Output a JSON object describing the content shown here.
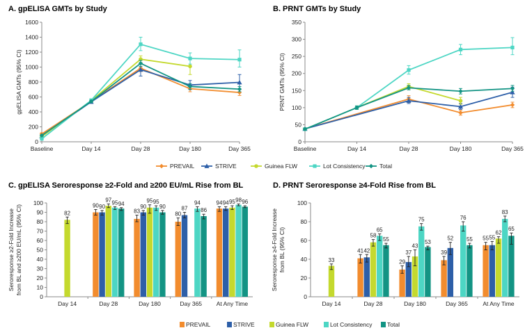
{
  "colors": {
    "PREVAIL": "#F28C2E",
    "STRIVE": "#2D5FA8",
    "Guinea FLW": "#C4D92E",
    "Lot Consistency": "#4DD6C4",
    "Total": "#139484"
  },
  "chart_data": [
    {
      "panel": "A",
      "type": "line",
      "title": "A. gpELISA GMTs by Study",
      "ylabel": "gpELISA GMTs (95% CI)",
      "categories": [
        "Baseline",
        "Day 14",
        "Day 28",
        "Day 180",
        "Day 365"
      ],
      "ylim": [
        0,
        1600
      ],
      "yticks": [
        "0",
        "200",
        "400",
        "600",
        "800",
        "1000",
        "1200",
        "1400",
        "1600"
      ],
      "series": [
        {
          "name": "PREVAIL",
          "values": [
            105,
            540,
            985,
            710,
            660
          ],
          "ci": [
            [
              90,
              120
            ],
            [
              520,
              560
            ],
            [
              940,
              1040
            ],
            [
              670,
              760
            ],
            [
              620,
              700
            ]
          ]
        },
        {
          "name": "STRIVE",
          "values": [
            75,
            535,
            965,
            760,
            795
          ],
          "ci": [
            [
              65,
              85
            ],
            [
              515,
              555
            ],
            [
              880,
              1050
            ],
            [
              700,
              820
            ],
            [
              700,
              900
            ]
          ]
        },
        {
          "name": "Guinea FLW",
          "values": [
            70,
            550,
            1105,
            1010,
            null
          ],
          "ci": [
            [
              60,
              80
            ],
            [
              530,
              570
            ],
            [
              1060,
              1150
            ],
            [
              900,
              1120
            ],
            null
          ]
        },
        {
          "name": "Lot Consistency",
          "values": [
            40,
            555,
            1305,
            1115,
            1100
          ],
          "ci": [
            [
              35,
              45
            ],
            [
              535,
              575
            ],
            [
              1220,
              1400
            ],
            [
              1040,
              1190
            ],
            [
              1000,
              1230
            ]
          ]
        },
        {
          "name": "Total",
          "values": [
            85,
            540,
            1050,
            740,
            705
          ],
          "ci": [
            [
              75,
              95
            ],
            [
              525,
              555
            ],
            [
              1010,
              1090
            ],
            [
              700,
              780
            ],
            [
              670,
              740
            ]
          ]
        }
      ]
    },
    {
      "panel": "B",
      "type": "line",
      "title": "B. PRNT GMTs by Study",
      "ylabel": "PRNT GMTs (95% CI)",
      "categories": [
        "Baseline",
        "Day 14",
        "Day 28",
        "Day 180",
        "Day 365"
      ],
      "ylim": [
        0,
        350
      ],
      "yticks": [
        "0",
        "50",
        "100",
        "150",
        "200",
        "250",
        "300",
        "350"
      ],
      "series": [
        {
          "name": "PREVAIL",
          "values": [
            38,
            null,
            125,
            85,
            108
          ],
          "ci": [
            [
              35,
              41
            ],
            null,
            [
              115,
              135
            ],
            [
              78,
              92
            ],
            [
              100,
              116
            ]
          ]
        },
        {
          "name": "STRIVE",
          "values": [
            38,
            null,
            120,
            103,
            145
          ],
          "ci": [
            [
              35,
              41
            ],
            null,
            [
              112,
              130
            ],
            [
              95,
              112
            ],
            [
              130,
              160
            ]
          ]
        },
        {
          "name": "Guinea FLW",
          "values": [
            37,
            100,
            162,
            120,
            null
          ],
          "ci": [
            [
              34,
              40
            ],
            [
              95,
              105
            ],
            [
              155,
              170
            ],
            [
              110,
              130
            ],
            null
          ]
        },
        {
          "name": "Lot Consistency",
          "values": [
            37,
            100,
            210,
            270,
            276
          ],
          "ci": [
            [
              34,
              40
            ],
            [
              95,
              105
            ],
            [
              198,
              223
            ],
            [
              255,
              285
            ],
            [
              255,
              305
            ]
          ]
        },
        {
          "name": "Total",
          "values": [
            37,
            100,
            158,
            148,
            156
          ],
          "ci": [
            [
              34,
              40
            ],
            [
              95,
              105
            ],
            [
              152,
              165
            ],
            [
              140,
              156
            ],
            [
              148,
              165
            ]
          ]
        }
      ]
    },
    {
      "panel": "C",
      "type": "bar",
      "title": "C. gpELISA Seroresponse ≥2-Fold and ≥200 EU/mL Rise from BL",
      "ylabel": [
        "Seroresponse ≥2-Fold Increase",
        "from BL and ≥200 EU/mL (95% CI)"
      ],
      "categories": [
        "Day 14",
        "Day 28",
        "Day 180",
        "Day 365",
        "At Any Time"
      ],
      "ylim": [
        0,
        100
      ],
      "yticks": [
        "0",
        "10",
        "20",
        "30",
        "40",
        "50",
        "60",
        "70",
        "80",
        "90",
        "100"
      ],
      "series": [
        {
          "name": "PREVAIL",
          "values": [
            null,
            90,
            83,
            80,
            94
          ],
          "labels": [
            "",
            "90",
            "83",
            "80",
            "94"
          ],
          "ci": [
            null,
            [
              87,
              93
            ],
            [
              80,
              87
            ],
            [
              76,
              84
            ],
            [
              91,
              96
            ]
          ]
        },
        {
          "name": "STRIVE",
          "values": [
            null,
            90,
            90,
            87,
            94
          ],
          "labels": [
            "",
            "90",
            "90",
            "87",
            "94"
          ],
          "ci": [
            null,
            [
              87,
              92
            ],
            [
              87,
              92
            ],
            [
              84,
              90
            ],
            [
              92,
              96
            ]
          ]
        },
        {
          "name": "Guinea FLW",
          "values": [
            82,
            97,
            95,
            null,
            95
          ],
          "labels": [
            "82",
            "97",
            "95",
            "",
            "95"
          ],
          "ci": [
            [
              78,
              85
            ],
            [
              95,
              99
            ],
            [
              89,
              98
            ],
            null,
            [
              93,
              97
            ]
          ]
        },
        {
          "name": "Lot Consistency",
          "values": [
            null,
            95,
            95,
            94,
            98
          ],
          "labels": [
            "",
            "95",
            "95",
            "94",
            "98"
          ],
          "ci": [
            null,
            [
              93,
              96
            ],
            [
              92,
              97
            ],
            [
              91,
              96
            ],
            [
              97,
              99
            ]
          ]
        },
        {
          "name": "Total",
          "values": [
            null,
            94,
            90,
            86,
            96
          ],
          "labels": [
            "",
            "94",
            "90",
            "86",
            "96"
          ],
          "ci": [
            null,
            [
              92,
              95
            ],
            [
              88,
              92
            ],
            [
              83,
              88
            ],
            [
              95,
              97
            ]
          ]
        }
      ]
    },
    {
      "panel": "D",
      "type": "bar",
      "title": "D. PRNT Seroresponse ≥4-Fold Rise from BL",
      "ylabel": [
        "Seroresponse ≥4-Fold Increase",
        "from BL (95% CI)"
      ],
      "categories": [
        "Day 14",
        "Day 28",
        "Day 180",
        "Day 365",
        "At Any Time"
      ],
      "ylim": [
        0,
        100
      ],
      "yticks": [
        "0",
        "20",
        "40",
        "60",
        "80",
        "100"
      ],
      "series": [
        {
          "name": "PREVAIL",
          "values": [
            null,
            41,
            29,
            39,
            55
          ],
          "labels": [
            "",
            "41",
            "29",
            "39",
            "55"
          ],
          "ci": [
            null,
            [
              36,
              45
            ],
            [
              25,
              33
            ],
            [
              34,
              43
            ],
            [
              50,
              58
            ]
          ]
        },
        {
          "name": "STRIVE",
          "values": [
            null,
            42,
            37,
            52,
            55
          ],
          "labels": [
            "",
            "42",
            "37",
            "52",
            "55"
          ],
          "ci": [
            null,
            [
              37,
              45
            ],
            [
              32,
              43
            ],
            [
              45,
              58
            ],
            [
              50,
              59
            ]
          ]
        },
        {
          "name": "Guinea FLW",
          "values": [
            33,
            58,
            43,
            null,
            62
          ],
          "labels": [
            "33",
            "58",
            "43",
            "",
            "62"
          ],
          "ci": [
            [
              29,
              35
            ],
            [
              54,
              61
            ],
            [
              33,
              50
            ],
            null,
            [
              57,
              64
            ]
          ]
        },
        {
          "name": "Lot Consistency",
          "values": [
            null,
            65,
            75,
            76,
            83
          ],
          "labels": [
            "",
            "65",
            "75",
            "76",
            "83"
          ],
          "ci": [
            null,
            [
              60,
              67
            ],
            [
              71,
              78
            ],
            [
              70,
              80
            ],
            [
              80,
              86
            ]
          ]
        },
        {
          "name": "Total",
          "values": [
            null,
            55,
            53,
            55,
            65
          ],
          "labels": [
            "",
            "55",
            "53",
            "55",
            "65"
          ],
          "ci": [
            null,
            [
              52,
              57
            ],
            [
              50,
              54
            ],
            [
              52,
              57
            ],
            [
              56,
              68
            ]
          ]
        }
      ]
    }
  ],
  "legend_lines": [
    "PREVAIL",
    "STRIVE",
    "Guinea FLW",
    "Lot Consistency",
    "Total"
  ],
  "legend_bars": [
    "PREVAIL",
    "STRIVE",
    "Guinea FLW",
    "Lot Consistency",
    "Total"
  ]
}
